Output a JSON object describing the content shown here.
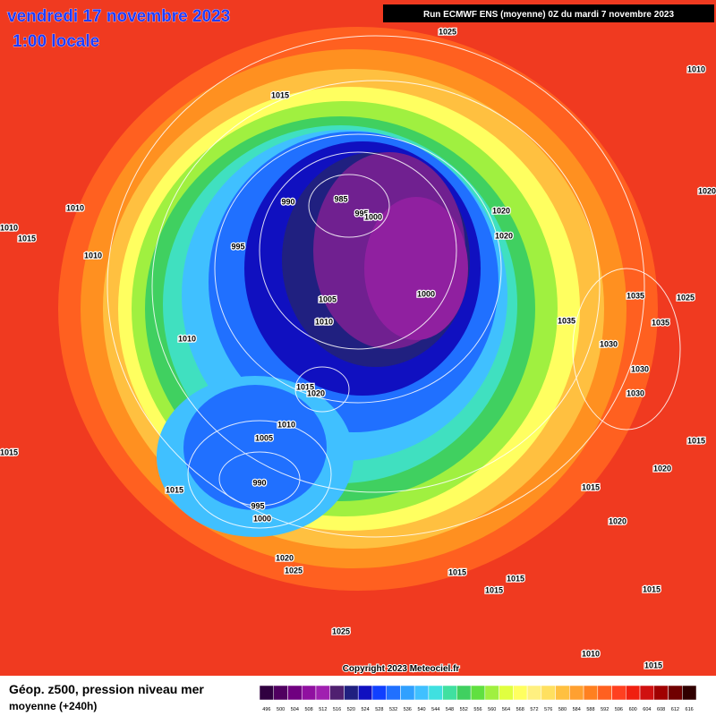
{
  "header": {
    "date": "vendredi 17 novembre 2023",
    "time": "1:00 locale",
    "run": "Run ECMWF ENS (moyenne) 0Z du mardi 7 novembre 2023"
  },
  "isobar_labels": [
    "1025",
    "1010",
    "1015",
    "1020",
    "1010",
    "1010",
    "1015",
    "990",
    "985",
    "995",
    "1000",
    "1020",
    "1020",
    "995",
    "1010",
    "1035",
    "1025",
    "1005",
    "1000",
    "1010",
    "1035",
    "1035",
    "1010",
    "1030",
    "1030",
    "1015",
    "1020",
    "1030",
    "1010",
    "1005",
    "1015",
    "1015",
    "1020",
    "990",
    "1015",
    "1015",
    "995",
    "1000",
    "1020",
    "1020",
    "1025",
    "1015",
    "1015",
    "1015",
    "1015",
    "1025",
    "1010",
    "1015"
  ],
  "copyright": "Copyright 2023 Meteociel.fr",
  "legend": {
    "title": "Géop. z500, pression niveau mer",
    "subtitle": "moyenne  (+240h)",
    "ticks": [
      496,
      500,
      504,
      508,
      512,
      516,
      520,
      524,
      528,
      532,
      536,
      540,
      544,
      548,
      552,
      556,
      560,
      564,
      568,
      572,
      576,
      580,
      584,
      588,
      592,
      596,
      600,
      604,
      608,
      612,
      616
    ],
    "colors": [
      "#300040",
      "#500060",
      "#700080",
      "#9010a0",
      "#a020b0",
      "#502070",
      "#202080",
      "#1010c0",
      "#1040ff",
      "#2070ff",
      "#30a0ff",
      "#40c0ff",
      "#40e0e0",
      "#40e0a0",
      "#40d060",
      "#60e040",
      "#a0f040",
      "#e0ff40",
      "#ffff60",
      "#fff080",
      "#ffe060",
      "#ffc040",
      "#ffa030",
      "#ff8020",
      "#ff6020",
      "#ff4020",
      "#f02010",
      "#d01010",
      "#a00000",
      "#700000",
      "#300000"
    ]
  }
}
